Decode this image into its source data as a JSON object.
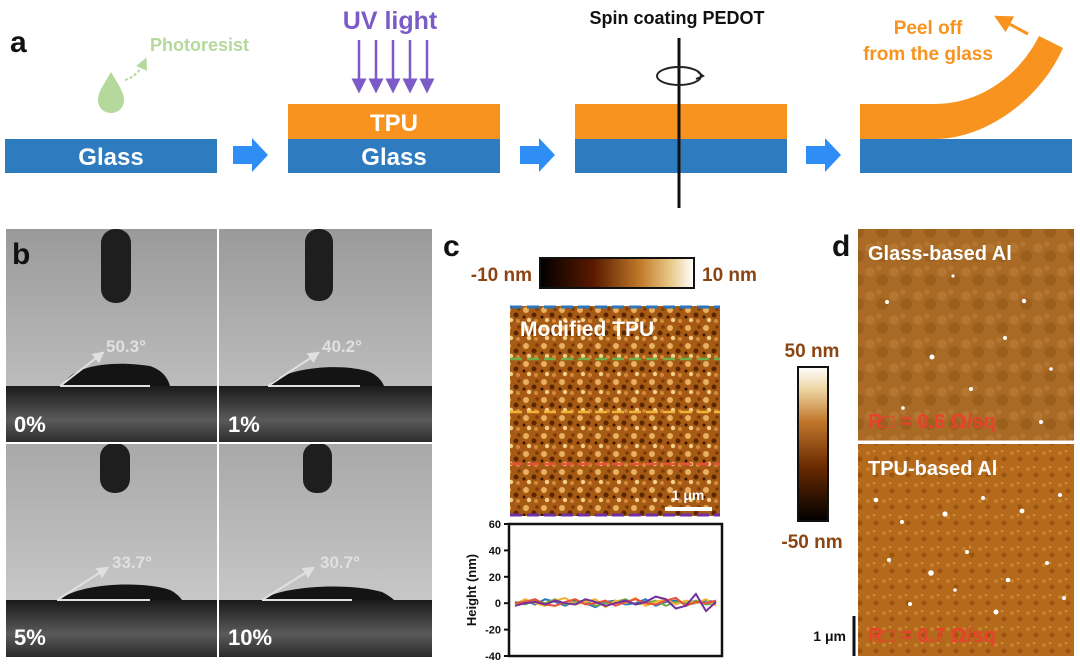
{
  "figure": {
    "panels": {
      "a": {
        "letter": "a",
        "glass_label": "Glass",
        "tpu_label": "TPU",
        "photoresist_label": "Photoresist",
        "uv_label": "UV light",
        "spin_label": "Spin coating PEDOT",
        "peel_line1": "Peel off",
        "peel_line2": "from the glass"
      },
      "b": {
        "letter": "b",
        "cells": [
          {
            "concentration": "0%",
            "angle": "50.3°"
          },
          {
            "concentration": "1%",
            "angle": "40.2°"
          },
          {
            "concentration": "5%",
            "angle": "33.7°"
          },
          {
            "concentration": "10%",
            "angle": "30.7°"
          }
        ]
      },
      "c": {
        "letter": "c",
        "colorbar_min": "-10 nm",
        "colorbar_max": "10 nm",
        "image_label": "Modified TPU",
        "scale_bar": "1 μm"
      },
      "d": {
        "letter": "d",
        "colorbar_max": "50 nm",
        "colorbar_min": "-50 nm",
        "top_label": "Glass-based Al",
        "top_resistance": "R□ = 0.6 Ω/sq",
        "bottom_label": "TPU-based Al",
        "bottom_resistance": "R□ = 0.7 Ω/sq",
        "scale_bar": "1 μm"
      }
    },
    "colors": {
      "glass_blue": "#2e7cbf",
      "tpu_orange": "#f7931e",
      "arrow_blue": "#2f8ef6",
      "uv_purple": "#7b5cc6",
      "photoresist_green": "#b5d99c",
      "resistance_red": "#e8412d",
      "afm_label_brown": "#8b4513"
    }
  },
  "chart_data": {
    "type": "line",
    "title": "",
    "xlabel": "",
    "ylabel": "Height (nm)",
    "ylim": [
      -40,
      60
    ],
    "yticks": [
      "60",
      "40",
      "20",
      "0",
      "-20",
      "-40"
    ],
    "x": [
      0,
      1,
      2,
      3,
      4,
      5,
      6,
      7,
      8,
      9,
      10,
      11,
      12,
      13,
      14,
      15,
      16,
      17,
      18,
      19,
      20
    ],
    "series": [
      {
        "name": "blue",
        "color": "#2e75b6",
        "values": [
          0,
          2,
          -1,
          3,
          1,
          -2,
          2,
          0,
          -3,
          1,
          2,
          -1,
          0,
          3,
          -2,
          1,
          2,
          -1,
          0,
          2,
          1
        ]
      },
      {
        "name": "green",
        "color": "#70ad47",
        "values": [
          1,
          -1,
          2,
          0,
          3,
          -1,
          1,
          2,
          -2,
          0,
          1,
          3,
          -1,
          0,
          2,
          -2,
          1,
          0,
          2,
          -1,
          0
        ]
      },
      {
        "name": "yellow",
        "color": "#f2b233",
        "values": [
          -1,
          3,
          0,
          -2,
          2,
          4,
          -1,
          1,
          3,
          -3,
          2,
          0,
          4,
          -2,
          1,
          3,
          -1,
          2,
          0,
          3,
          -2
        ]
      },
      {
        "name": "red",
        "color": "#e8523a",
        "values": [
          0,
          1,
          3,
          -1,
          -2,
          1,
          3,
          -1,
          0,
          2,
          -2,
          1,
          3,
          0,
          -1,
          2,
          4,
          -2,
          1,
          0,
          2
        ]
      },
      {
        "name": "purple",
        "color": "#7030a0",
        "values": [
          -2,
          0,
          1,
          -1,
          2,
          0,
          -1,
          3,
          1,
          -2,
          0,
          2,
          -1,
          1,
          5,
          3,
          -4,
          -2,
          7,
          -6,
          1
        ]
      }
    ]
  }
}
